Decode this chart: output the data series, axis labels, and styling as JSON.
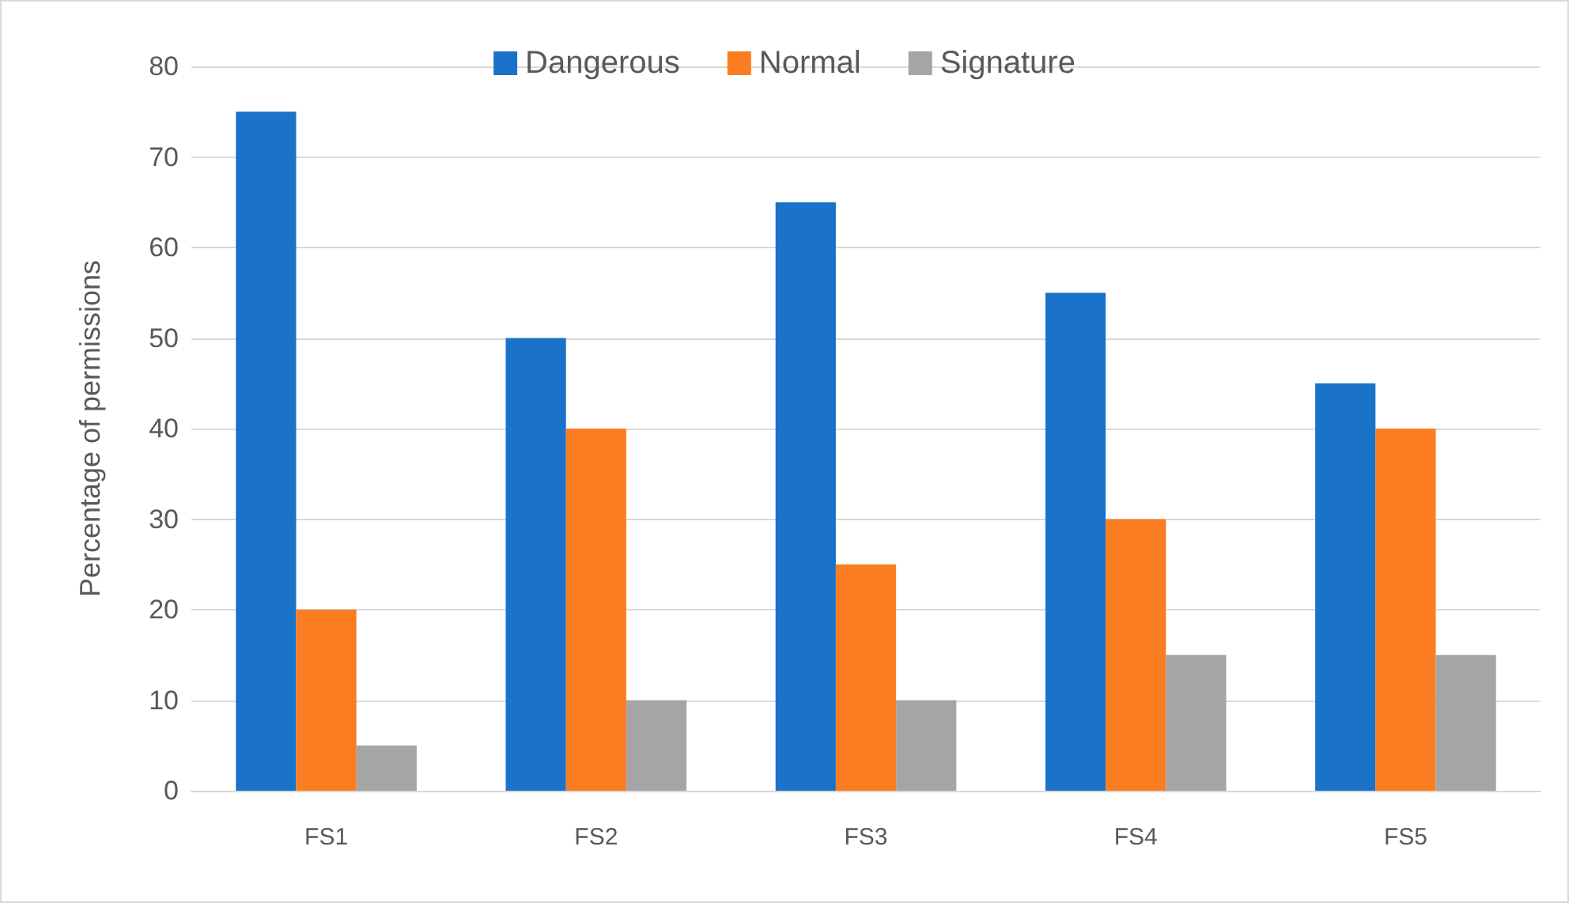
{
  "chart_data": {
    "type": "bar",
    "ylabel": "Percentage of permissions",
    "categories": [
      "FS1",
      "FS2",
      "FS3",
      "FS4",
      "FS5"
    ],
    "series": [
      {
        "name": "Dangerous",
        "color": "#1a72c9",
        "values": [
          75,
          50,
          65,
          55,
          45
        ]
      },
      {
        "name": "Normal",
        "color": "#fb7d22",
        "values": [
          20,
          40,
          25,
          30,
          40
        ]
      },
      {
        "name": "Signature",
        "color": "#a5a5a5",
        "values": [
          5,
          10,
          10,
          15,
          15
        ]
      }
    ],
    "ylim": [
      0,
      80
    ],
    "yticks": [
      0,
      10,
      20,
      30,
      40,
      50,
      60,
      70,
      80
    ],
    "grid": "y",
    "legend": "top"
  }
}
